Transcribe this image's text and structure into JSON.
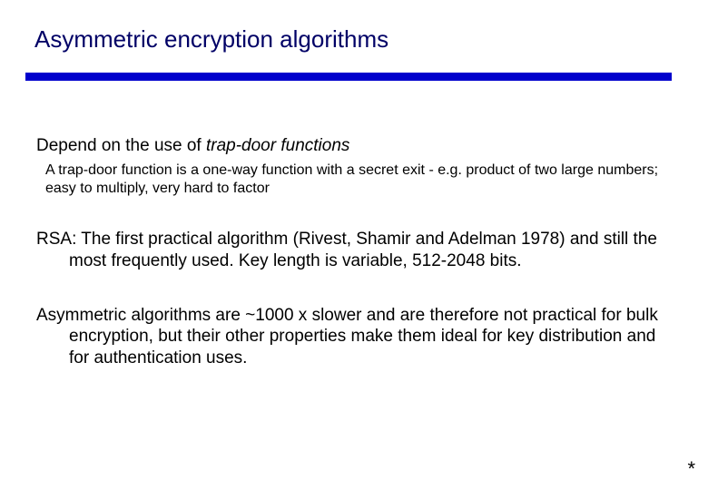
{
  "title": "Asymmetric encryption algorithms",
  "rule_color": "#0000cc",
  "title_color": "#000066",
  "lead_prefix": "Depend on the use of ",
  "lead_italic": "trap-door functions",
  "sub": "A trap-door function is a one-way function with a secret exit - e.g. product of two large numbers; easy to multiply, very hard to factor",
  "para1": "RSA: The first practical algorithm (Rivest, Shamir and Adelman 1978) and still the most frequently used. Key length is variable, 512-2048 bits.",
  "para2": "Asymmetric algorithms are ~1000 x slower and are therefore not practical for bulk encryption, but their other properties make them ideal for key distribution and for authentication uses.",
  "footer_mark": "*"
}
